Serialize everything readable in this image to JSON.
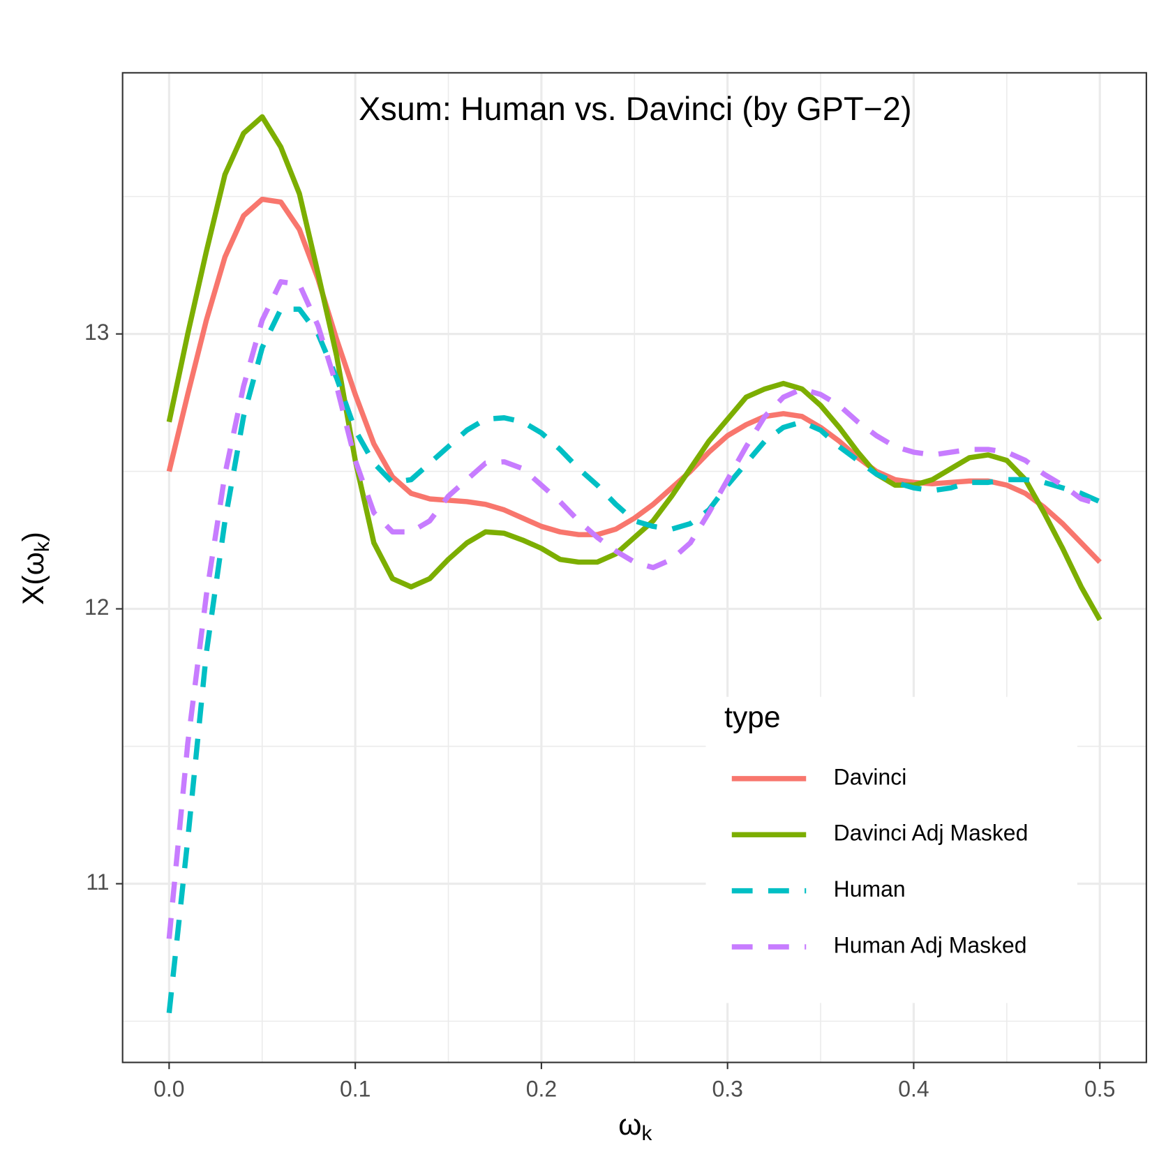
{
  "chart_data": {
    "type": "line",
    "title": "Xsum: Human vs. Davinci (by GPT−2)",
    "xlabel": [
      "ω",
      "k"
    ],
    "ylabel": [
      "X(ω",
      "k",
      ")"
    ],
    "legend_title": "type",
    "legend": "bottom-right",
    "grid": true,
    "xlim": [
      -0.025,
      0.525
    ],
    "ylim": [
      10.35,
      13.95
    ],
    "xticks": [
      {
        "value": 0,
        "label": "0.0"
      },
      0.1,
      0.2,
      0.3,
      0.4,
      0.5
    ],
    "yticks": [
      11,
      12,
      13
    ],
    "xminor": [
      0.05,
      0.15,
      0.25,
      0.35,
      0.45
    ],
    "yminor": [
      10.5,
      11.5,
      12.5,
      13.5
    ],
    "x": [
      0,
      0.01,
      0.02,
      0.03,
      0.04,
      0.05,
      0.06,
      0.07,
      0.08,
      0.09,
      0.1,
      0.11,
      0.12,
      0.13,
      0.14,
      0.15,
      0.16,
      0.17,
      0.18,
      0.19,
      0.2,
      0.21,
      0.22,
      0.23,
      0.24,
      0.25,
      0.26,
      0.27,
      0.28,
      0.29,
      0.3,
      0.31,
      0.32,
      0.33,
      0.34,
      0.35,
      0.36,
      0.37,
      0.38,
      0.39,
      0.4,
      0.41,
      0.42,
      0.43,
      0.44,
      0.45,
      0.46,
      0.47,
      0.48,
      0.49,
      0.5
    ],
    "series": [
      {
        "name": "Davinci",
        "color": "#F8766D",
        "dashed": false,
        "values": [
          12.5,
          12.78,
          13.05,
          13.28,
          13.43,
          13.49,
          13.48,
          13.38,
          13.2,
          12.98,
          12.78,
          12.6,
          12.48,
          12.42,
          12.4,
          12.395,
          12.39,
          12.38,
          12.36,
          12.33,
          12.3,
          12.28,
          12.27,
          12.27,
          12.29,
          12.33,
          12.38,
          12.44,
          12.5,
          12.57,
          12.63,
          12.67,
          12.7,
          12.71,
          12.7,
          12.66,
          12.61,
          12.55,
          12.5,
          12.47,
          12.46,
          12.455,
          12.46,
          12.465,
          12.465,
          12.45,
          12.42,
          12.37,
          12.31,
          12.24,
          12.17
        ]
      },
      {
        "name": "Davinci Adj Masked",
        "color": "#7CAE00",
        "dashed": false,
        "values": [
          12.68,
          13.0,
          13.3,
          13.58,
          13.73,
          13.79,
          13.68,
          13.51,
          13.22,
          12.92,
          12.54,
          12.24,
          12.11,
          12.08,
          12.11,
          12.18,
          12.24,
          12.28,
          12.275,
          12.25,
          12.22,
          12.18,
          12.17,
          12.17,
          12.2,
          12.26,
          12.32,
          12.41,
          12.51,
          12.61,
          12.69,
          12.77,
          12.8,
          12.82,
          12.8,
          12.74,
          12.66,
          12.57,
          12.49,
          12.45,
          12.45,
          12.47,
          12.51,
          12.55,
          12.56,
          12.54,
          12.47,
          12.35,
          12.22,
          12.08,
          11.96
        ]
      },
      {
        "name": "Human",
        "color": "#00BFC4",
        "dashed": true,
        "values": [
          10.53,
          11.16,
          11.84,
          12.32,
          12.7,
          12.95,
          13.09,
          13.09,
          13.0,
          12.84,
          12.65,
          12.53,
          12.46,
          12.47,
          12.53,
          12.59,
          12.65,
          12.69,
          12.695,
          12.68,
          12.64,
          12.58,
          12.51,
          12.45,
          12.38,
          12.32,
          12.3,
          12.29,
          12.31,
          12.36,
          12.45,
          12.53,
          12.61,
          12.66,
          12.68,
          12.65,
          12.59,
          12.54,
          12.49,
          12.46,
          12.44,
          12.43,
          12.44,
          12.46,
          12.46,
          12.47,
          12.47,
          12.46,
          12.44,
          12.42,
          12.39
        ]
      },
      {
        "name": "Human Adj Masked",
        "color": "#C77CFF",
        "dashed": true,
        "values": [
          10.8,
          11.51,
          12.05,
          12.49,
          12.81,
          13.05,
          13.19,
          13.18,
          13.03,
          12.81,
          12.54,
          12.35,
          12.28,
          12.28,
          12.32,
          12.41,
          12.47,
          12.53,
          12.535,
          12.51,
          12.45,
          12.39,
          12.32,
          12.26,
          12.21,
          12.17,
          12.15,
          12.18,
          12.24,
          12.35,
          12.47,
          12.59,
          12.7,
          12.77,
          12.8,
          12.78,
          12.74,
          12.68,
          12.63,
          12.59,
          12.57,
          12.56,
          12.57,
          12.58,
          12.58,
          12.57,
          12.54,
          12.49,
          12.45,
          12.4,
          12.38
        ]
      }
    ]
  }
}
